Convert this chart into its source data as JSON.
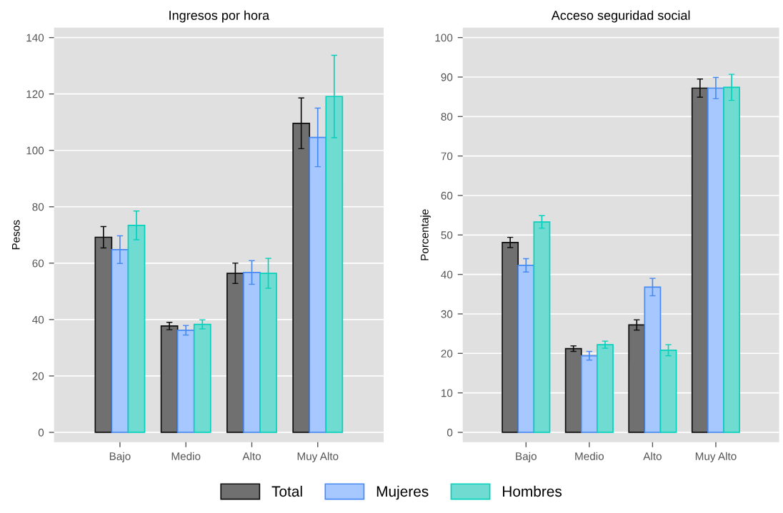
{
  "chart_data": [
    {
      "type": "bar",
      "title": "Ingresos por hora",
      "ylabel": "Pesos",
      "categories": [
        "Bajo",
        "Medio",
        "Alto",
        "Muy Alto"
      ],
      "ylim": [
        -3.5,
        143.5
      ],
      "yticks": [
        0,
        20,
        40,
        60,
        80,
        100,
        120,
        140
      ],
      "grid": "y",
      "legend": "bottom",
      "series": [
        {
          "name": "Total",
          "color": "#707070",
          "values": [
            69.2,
            37.7,
            56.4,
            109.6
          ],
          "errors": [
            3.8,
            1.3,
            3.6,
            9.0
          ]
        },
        {
          "name": "Mujeres",
          "color": "#a6c8ff",
          "values": [
            64.8,
            36.2,
            56.7,
            104.6
          ],
          "errors": [
            4.9,
            1.7,
            4.2,
            10.4
          ]
        },
        {
          "name": "Hombres",
          "color": "#70dcd1",
          "values": [
            73.4,
            38.3,
            56.4,
            119.1
          ],
          "errors": [
            5.1,
            1.6,
            5.3,
            14.6
          ]
        }
      ]
    },
    {
      "type": "bar",
      "title": "Acceso seguridad social",
      "ylabel": "Porcentaje",
      "categories": [
        "Bajo",
        "Medio",
        "Alto",
        "Muy Alto"
      ],
      "ylim": [
        -2.5,
        102.5
      ],
      "yticks": [
        0,
        10,
        20,
        30,
        40,
        50,
        60,
        70,
        80,
        90,
        100
      ],
      "grid": "y",
      "series": [
        {
          "color": "#707070",
          "values": [
            48.1,
            21.2,
            27.2,
            87.2
          ],
          "errors": [
            1.3,
            0.7,
            1.3,
            2.3
          ]
        },
        {
          "color": "#a6c8ff",
          "values": [
            42.3,
            19.4,
            36.8,
            87.2
          ],
          "errors": [
            1.7,
            1.1,
            2.2,
            2.7
          ]
        },
        {
          "color": "#70dcd1",
          "values": [
            53.3,
            22.2,
            20.8,
            87.4
          ],
          "errors": [
            1.6,
            0.9,
            1.4,
            3.3
          ]
        }
      ]
    }
  ]
}
